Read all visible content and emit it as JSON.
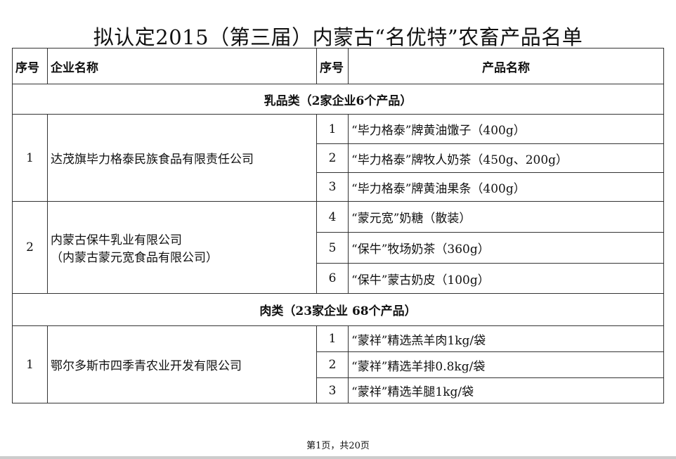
{
  "title": "拟认定2015（第三届）内蒙古“名优特”农畜产品名单",
  "headers": {
    "seq": "序号",
    "company": "企业名称",
    "product_seq": "序号",
    "product": "产品名称"
  },
  "categories": [
    {
      "label": "乳品类（2家企业6个产品）",
      "companies": [
        {
          "seq": "1",
          "name": "达茂旗毕力格泰民族食品有限责任公司",
          "name2": "",
          "products": [
            {
              "seq": "1",
              "name": "“毕力格泰”牌黄油馓子（400g）"
            },
            {
              "seq": "2",
              "name": "“毕力格泰”牌牧人奶茶（450g、200g）"
            },
            {
              "seq": "3",
              "name": "“毕力格泰”牌黄油果条（400g）"
            }
          ]
        },
        {
          "seq": "2",
          "name": "内蒙古保牛乳业有限公司",
          "name2": "（内蒙古蒙元宽食品有限公司）",
          "products": [
            {
              "seq": "4",
              "name": "“蒙元宽”奶糖（散装）"
            },
            {
              "seq": "5",
              "name": "“保牛”牧场奶茶（360g）"
            },
            {
              "seq": "6",
              "name": "“保牛”蒙古奶皮（100g）"
            }
          ]
        }
      ]
    },
    {
      "label": "肉类（23家企业 68个产品）",
      "companies": [
        {
          "seq": "1",
          "name": "鄂尔多斯市四季青农业开发有限公司",
          "name2": "",
          "products": [
            {
              "seq": "1",
              "name": "“蒙祥”精选羔羊肉1kg/袋"
            },
            {
              "seq": "2",
              "name": "“蒙祥”精选羊排0.8kg/袋"
            },
            {
              "seq": "3",
              "name": "“蒙祥”精选羊腿1kg/袋"
            }
          ]
        }
      ]
    }
  ],
  "footer": "第1页，共20页"
}
